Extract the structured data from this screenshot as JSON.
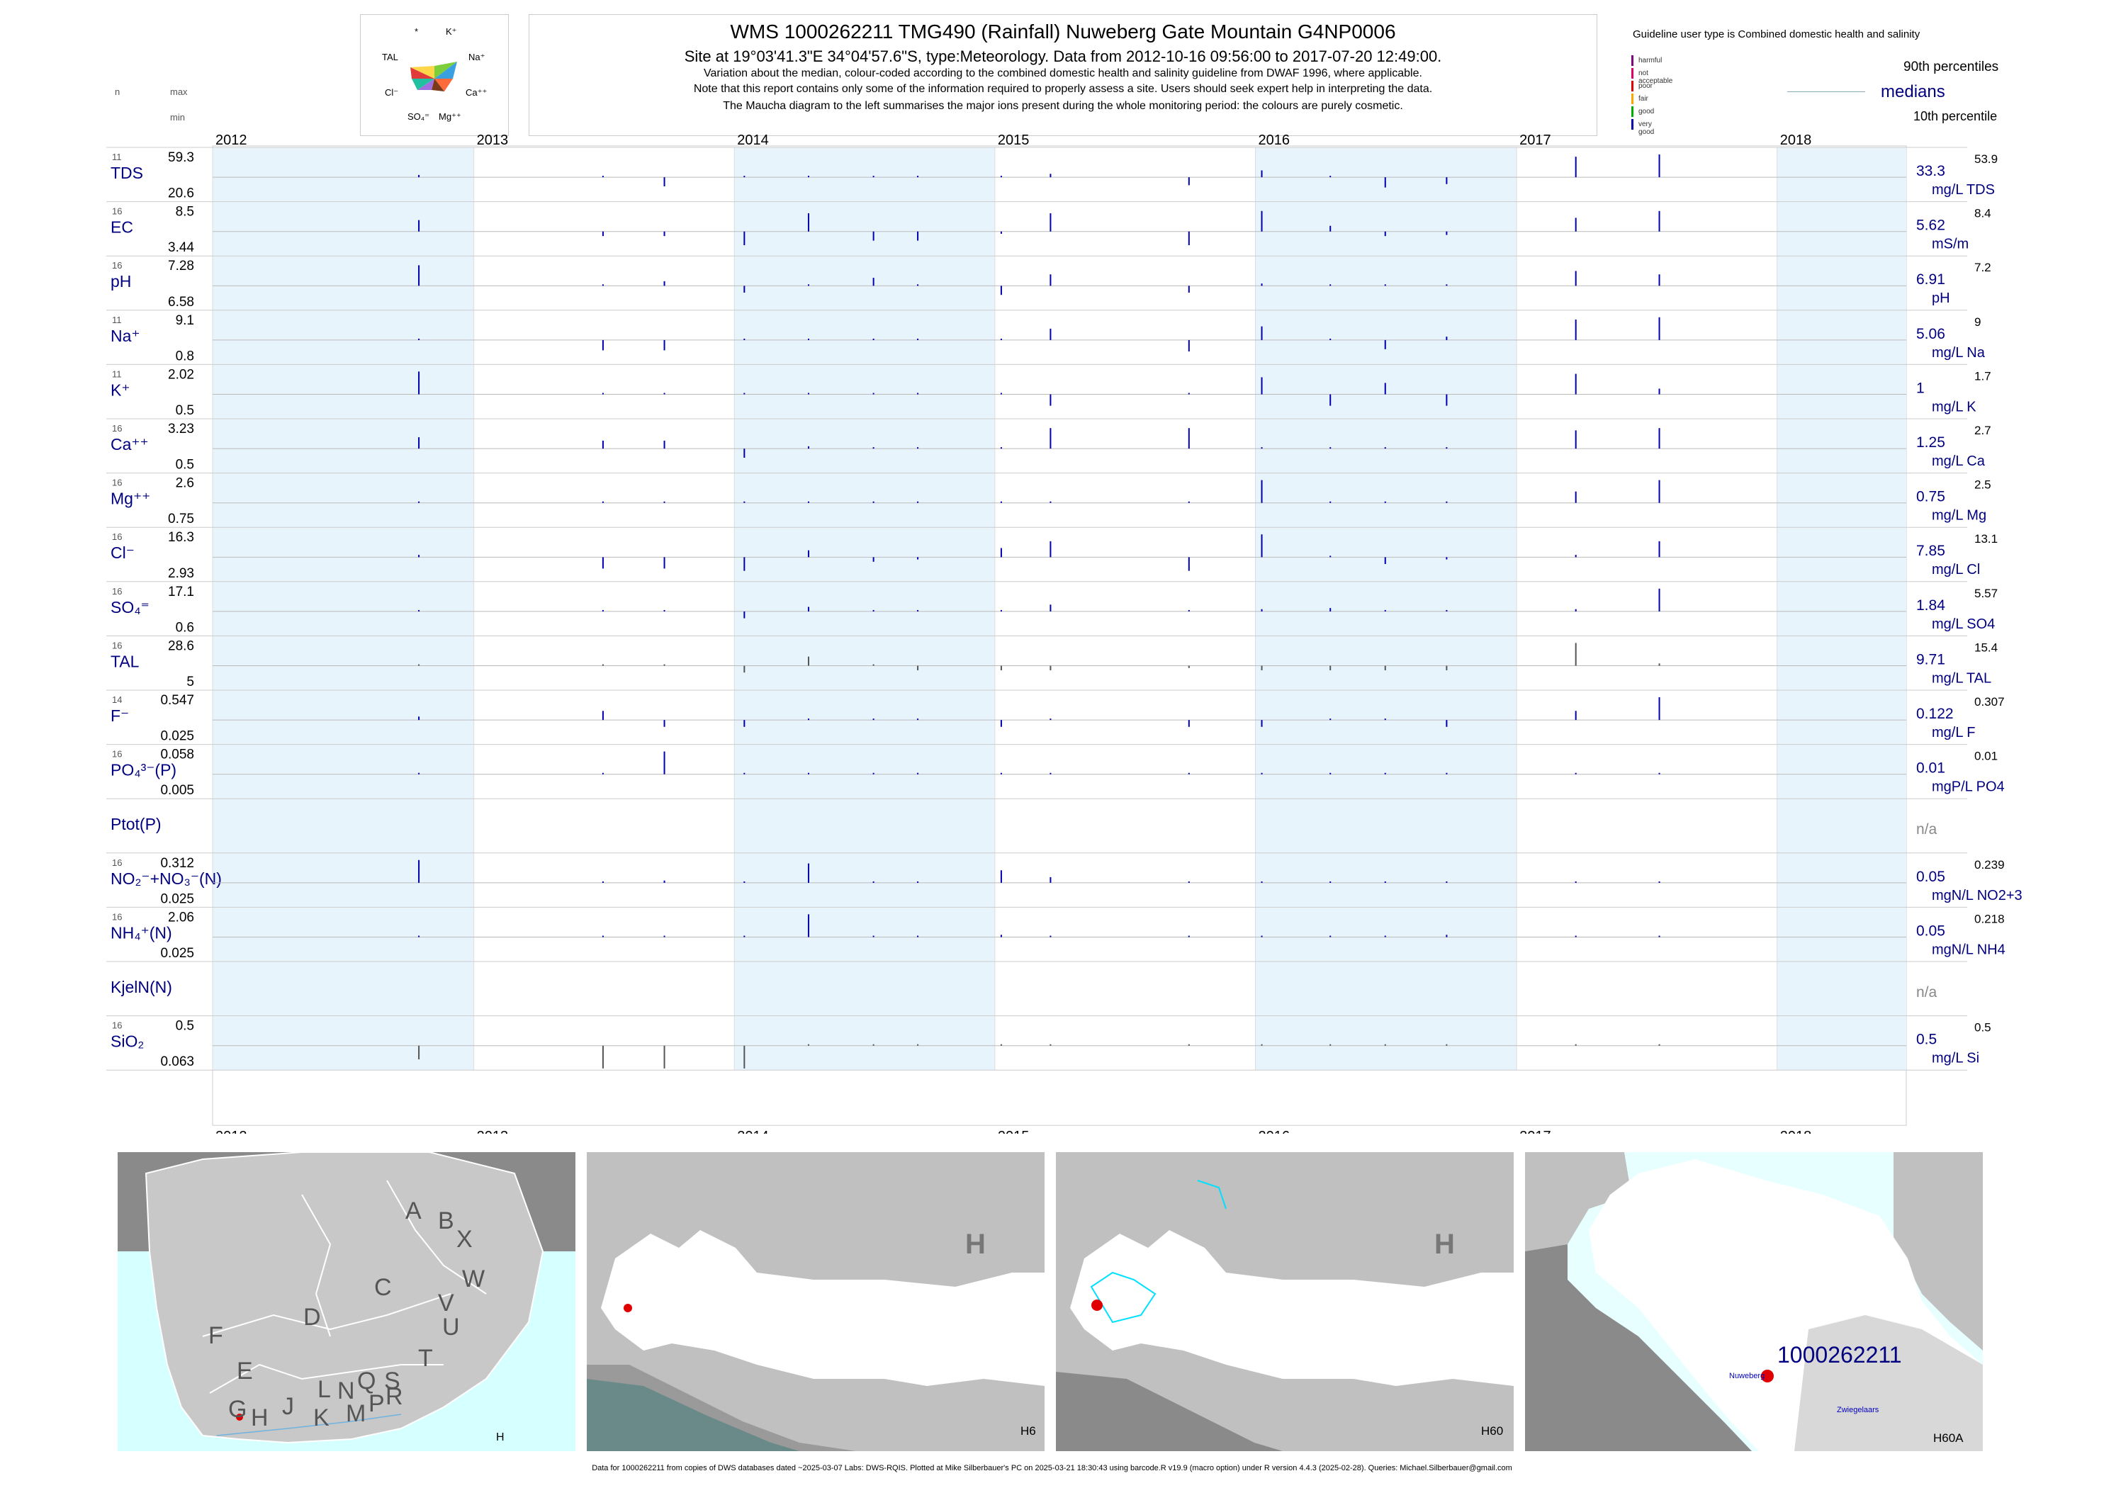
{
  "header": {
    "title": "WMS 1000262211  TMG490 (Rainfall) Nuweberg Gate Mountain G4NP0006",
    "line2": "Site at 19°03'41.3\"E 34°04'57.6\"S, type:Meteorology.  Data from 2012-10-16 09:56:00 to 2017-07-20 12:49:00.",
    "line3": "Variation about the median,  colour-coded according to the combined domestic health and salinity guideline from DWAF 1996, where applicable.",
    "line4": "Note that this report contains only some of the information required to properly assess a site. Users should seek expert help in interpreting the data.",
    "line5": "The Maucha diagram to the left summarises the major ions present during the whole monitoring period: the colours are purely cosmetic."
  },
  "maucha": {
    "labels": [
      "*",
      "K⁺",
      "TAL",
      "Na⁺",
      "Cl⁻",
      "Ca⁺⁺",
      "SO₄⁼",
      "Mg⁺⁺"
    ]
  },
  "col_headers": {
    "n": "n",
    "max": "max",
    "min": "min"
  },
  "guideline": {
    "title": "Guideline user type is Combined domestic health and salinity",
    "levels": [
      {
        "label": "harmful",
        "color": "#800080"
      },
      {
        "label": "not acceptable",
        "color": "#e0006a"
      },
      {
        "label": "poor",
        "color": "#e00000"
      },
      {
        "label": "fair",
        "color": "#ffa500"
      },
      {
        "label": "good",
        "color": "#00b000"
      },
      {
        "label": "very good",
        "color": "#0000b0"
      }
    ],
    "p90": "90th percentiles",
    "medians": "medians",
    "p10": "10th percentile"
  },
  "chart_data": {
    "type": "bar",
    "x_range": [
      "2012-01-01",
      "2018-07-01"
    ],
    "years": [
      "2012",
      "2013",
      "2014",
      "2015",
      "2016",
      "2017",
      "2018"
    ],
    "sample_dates": [
      "2012-10-16",
      "2013-07-01",
      "2013-09-25",
      "2014-01-15",
      "2014-04-15",
      "2014-07-15",
      "2014-09-15",
      "2015-01-10",
      "2015-03-20",
      "2015-09-30",
      "2016-01-10",
      "2016-04-15",
      "2016-07-01",
      "2016-09-25",
      "2017-03-25",
      "2017-07-20"
    ],
    "shaded_years": [
      "2012",
      "2014",
      "2016",
      "2018"
    ],
    "series": [
      {
        "name": "TDS",
        "n": "11",
        "max": "59.3",
        "min": "20.6",
        "median": "33.3",
        "unit": "mg/L TDS",
        "p90": "53.9",
        "values": [
          0.1,
          0,
          -0.4,
          0,
          0,
          0,
          0,
          0,
          0.15,
          -0.35,
          0.3,
          0,
          -0.45,
          -0.3,
          0.9,
          1.0
        ]
      },
      {
        "name": "EC",
        "n": "16",
        "max": "8.5",
        "min": "3.44",
        "median": "5.62",
        "unit": "mS/m",
        "p90": "8.4",
        "values": [
          0.5,
          -0.2,
          -0.2,
          -0.6,
          0.8,
          -0.4,
          -0.4,
          -0.1,
          0.8,
          -0.6,
          0.9,
          0.25,
          -0.2,
          -0.15,
          0.6,
          0.9
        ]
      },
      {
        "name": "pH",
        "n": "16",
        "max": "7.28",
        "min": "6.58",
        "median": "6.91",
        "unit": "pH",
        "p90": "7.2",
        "values": [
          0.9,
          0,
          0.2,
          -0.3,
          0.05,
          0.35,
          0.05,
          -0.4,
          0.5,
          -0.3,
          0.1,
          0.05,
          0.05,
          0.05,
          0.65,
          0.5
        ]
      },
      {
        "name": "Na⁺",
        "n": "11",
        "max": "9.1",
        "min": "0.8",
        "median": "5.06",
        "unit": "mg/L Na",
        "p90": "9",
        "values": [
          0,
          -0.45,
          -0.45,
          0,
          0,
          0,
          0,
          0,
          0.5,
          -0.5,
          0.6,
          0.05,
          -0.4,
          0.15,
          0.9,
          1.0
        ]
      },
      {
        "name": "K⁺",
        "n": "11",
        "max": "2.02",
        "min": "0.5",
        "median": "1",
        "unit": "mg/L K",
        "p90": "1.7",
        "values": [
          1.0,
          0,
          0,
          0,
          0,
          0,
          0,
          0,
          -0.5,
          0.05,
          0.75,
          -0.5,
          0.5,
          -0.5,
          0.9,
          0.25
        ]
      },
      {
        "name": "Ca⁺⁺",
        "n": "16",
        "max": "3.23",
        "min": "0.5",
        "median": "1.25",
        "unit": "mg/L Ca",
        "p90": "2.7",
        "values": [
          0.5,
          0.35,
          0.35,
          -0.4,
          0.1,
          0,
          0,
          0,
          0.9,
          0.9,
          0.05,
          0.05,
          0,
          0,
          0.8,
          0.9
        ]
      },
      {
        "name": "Mg⁺⁺",
        "n": "16",
        "max": "2.6",
        "min": "0.75",
        "median": "0.75",
        "unit": "mg/L Mg",
        "p90": "2.5",
        "values": [
          0,
          0,
          0,
          0,
          0,
          0,
          0,
          0,
          0,
          0,
          1.0,
          0,
          0,
          0,
          0.5,
          1.0
        ]
      },
      {
        "name": "Cl⁻",
        "n": "16",
        "max": "16.3",
        "min": "2.93",
        "median": "7.85",
        "unit": "mg/L Cl",
        "p90": "13.1",
        "values": [
          0.1,
          -0.5,
          -0.5,
          -0.6,
          0.3,
          -0.2,
          -0.1,
          0.4,
          0.7,
          -0.6,
          1.0,
          0,
          -0.3,
          -0.1,
          0.1,
          0.7
        ]
      },
      {
        "name": "SO₄⁼",
        "n": "16",
        "max": "17.1",
        "min": "0.6",
        "median": "1.84",
        "unit": "mg/L SO4",
        "p90": "5.57",
        "values": [
          0,
          0,
          0,
          -0.3,
          0.2,
          0,
          0,
          0,
          0.3,
          0,
          0.1,
          0.15,
          0,
          0,
          0.1,
          1.0
        ]
      },
      {
        "name": "TAL",
        "n": "16",
        "max": "28.6",
        "min": "5",
        "median": "9.71",
        "unit": "mg/L TAL",
        "p90": "15.4",
        "values": [
          0,
          0,
          0.05,
          -0.3,
          0.4,
          0,
          -0.2,
          -0.2,
          -0.2,
          -0.1,
          -0.2,
          -0.2,
          -0.2,
          -0.2,
          1.0,
          0.1
        ]
      },
      {
        "name": "F⁻",
        "n": "14",
        "max": "0.547",
        "min": "0.025",
        "median": "0.122",
        "unit": "mg/L F",
        "p90": "0.307",
        "values": [
          0.15,
          0.4,
          -0.3,
          -0.3,
          0,
          0,
          0,
          -0.3,
          0,
          -0.3,
          -0.3,
          0,
          0,
          -0.3,
          0.4,
          1.0
        ]
      },
      {
        "name": "PO₄³⁻(P)",
        "n": "16",
        "max": "0.058",
        "min": "0.005",
        "median": "0.01",
        "unit": "mgP/L PO4",
        "p90": "0.01",
        "values": [
          0,
          0,
          1.0,
          0,
          0,
          0,
          0,
          0,
          0,
          0,
          0,
          0,
          0,
          0,
          0,
          0
        ]
      },
      {
        "name": "Ptot(P)",
        "n": "",
        "max": "",
        "min": "",
        "median": "n/a",
        "unit": "",
        "p90": "",
        "values": []
      },
      {
        "name": "NO₂⁻+NO₃⁻(N)",
        "n": "16",
        "max": "0.312",
        "min": "0.025",
        "median": "0.05",
        "unit": "mgN/L NO2+3",
        "p90": "0.239",
        "values": [
          1.0,
          0,
          0.1,
          0,
          0.85,
          0,
          0,
          0.55,
          0.25,
          0,
          0,
          0,
          0,
          0,
          0,
          0
        ]
      },
      {
        "name": "NH₄⁺(N)",
        "n": "16",
        "max": "2.06",
        "min": "0.025",
        "median": "0.05",
        "unit": "mgN/L NH4",
        "p90": "0.218",
        "values": [
          0,
          0,
          0,
          0,
          1.0,
          0,
          0,
          0.1,
          0,
          0,
          0,
          0,
          0,
          0.1,
          0,
          0
        ]
      },
      {
        "name": "KjelN(N)",
        "n": "",
        "max": "",
        "min": "",
        "median": "n/a",
        "unit": "",
        "p90": "",
        "values": []
      },
      {
        "name": "SiO₂",
        "n": "16",
        "max": "0.5",
        "min": "0.063",
        "median": "0.5",
        "unit": "mg/L Si",
        "p90": "0.5",
        "values": [
          -0.6,
          -1.0,
          -1.0,
          -1.0,
          0,
          0,
          0,
          0,
          0,
          0,
          0,
          0,
          0,
          0,
          0,
          0
        ]
      }
    ]
  },
  "maps": {
    "map1": {
      "letters": [
        "A",
        "B",
        "X",
        "W",
        "C",
        "V",
        "U",
        "D",
        "T",
        "F",
        "E",
        "S",
        "L",
        "N",
        "Q",
        "R",
        "G",
        "H",
        "J",
        "K",
        "M",
        "P"
      ],
      "corner": "H"
    },
    "map2": {
      "big": "H",
      "corner": "H6"
    },
    "map3": {
      "big": "H",
      "corner": "H60"
    },
    "map4": {
      "site": "1000262211",
      "town1": "Nuweberg",
      "town2": "Zwiegelaars",
      "corner": "H60A"
    }
  },
  "footer": "Data for 1000262211 from copies of DWS databases dated ~2025-03-07 Labs: DWS-RQIS. Plotted at Mike Silberbauer's PC on 2025-03-21 18:30:43 using barcode.R v19.9 (macro option) under R version 4.4.3 (2025-02-28). Queries: Michael.Silberbauer@gmail.com"
}
